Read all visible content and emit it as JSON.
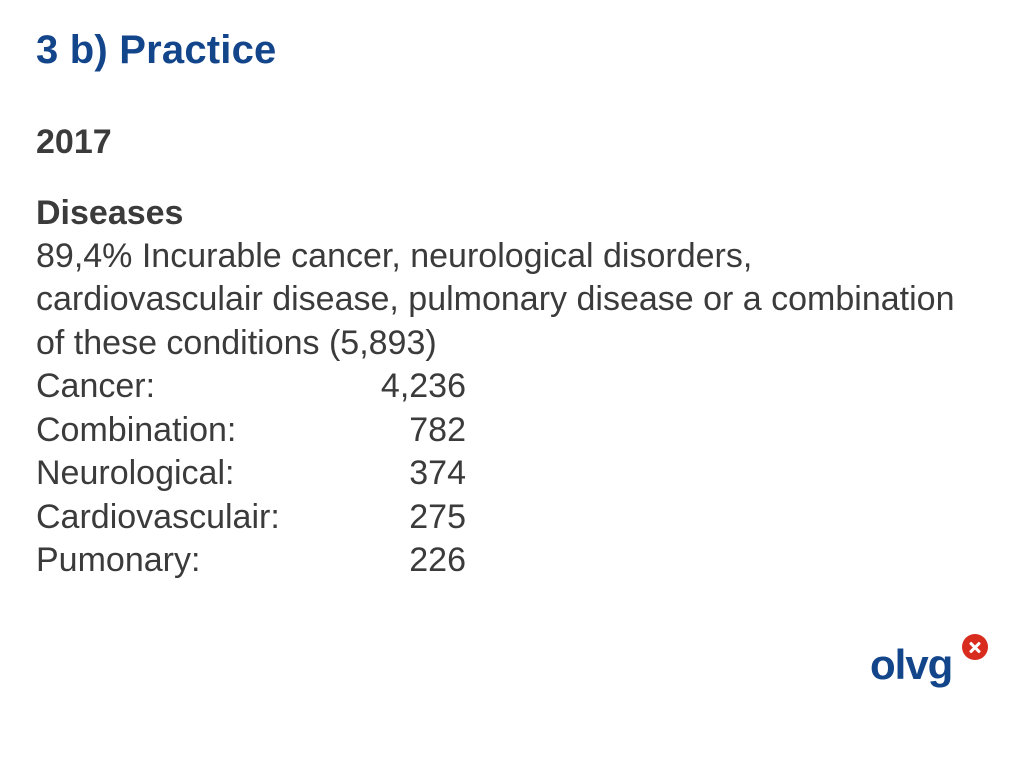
{
  "title": "3 b) Practice",
  "year": "2017",
  "subheading": "Diseases",
  "description": "89,4% Incurable cancer, neurological disorders, cardiovasculair disease, pulmonary disease or a combination of these conditions (5,893)",
  "stats": [
    {
      "label": "Cancer:",
      "value": "4,236"
    },
    {
      "label": "Combination:",
      "value": "782"
    },
    {
      "label": "Neurological:",
      "value": "374"
    },
    {
      "label": "Cardiovasculair:",
      "value": "275"
    },
    {
      "label": "Pumonary:",
      "value": "226"
    }
  ],
  "logo_text": "olvg",
  "colors": {
    "title": "#13458b",
    "body": "#3b3b3b",
    "logo_blue": "#13458b",
    "logo_red": "#d82c1f",
    "background": "#ffffff"
  },
  "typography": {
    "title_fontsize": 40,
    "body_fontsize": 34,
    "title_weight": 700,
    "subheading_weight": 700,
    "body_weight": 400
  }
}
